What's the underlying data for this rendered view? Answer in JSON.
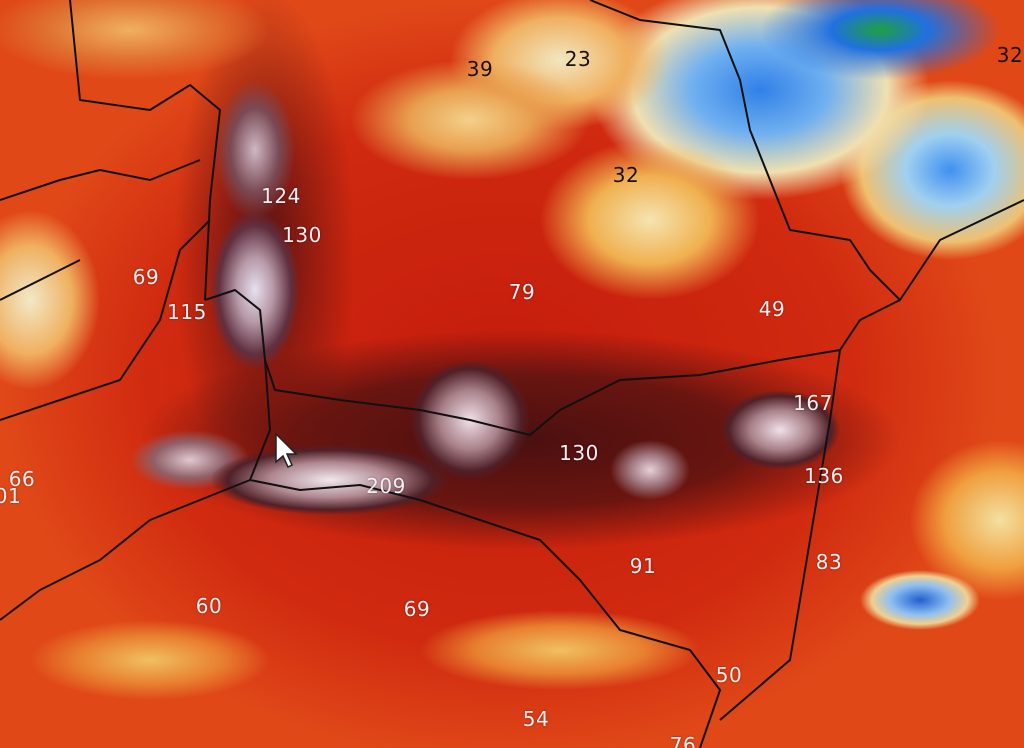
{
  "map": {
    "type": "precipitation accumulation map",
    "labels": [
      "39",
      "23",
      "32",
      "32",
      "124",
      "130",
      "69",
      "115",
      "79",
      "49",
      "167",
      "130",
      "136",
      "66",
      "01",
      "209",
      "91",
      "83",
      "60",
      "69",
      "50",
      "54",
      "76"
    ],
    "colors": {
      "low": "#2070e0",
      "mid": "#f0c060",
      "high": "#c41c0c",
      "very_high": "#4a1010",
      "extreme": "#e6e0f0"
    }
  }
}
